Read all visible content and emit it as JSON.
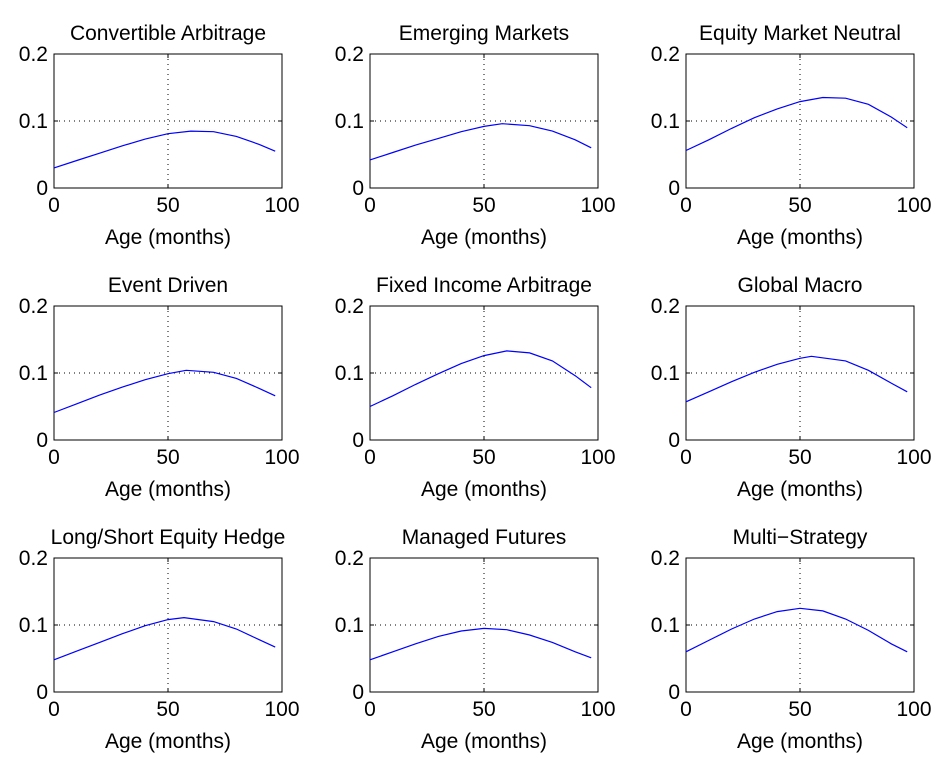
{
  "chart_data": [
    {
      "type": "line",
      "title": "Convertible Arbitrage",
      "xlabel": "Age (months)",
      "ylabel": "",
      "xlim": [
        0,
        100
      ],
      "ylim": [
        0,
        0.2
      ],
      "xticks": [
        0,
        50,
        100
      ],
      "yticks": [
        0,
        0.1,
        0.2
      ],
      "xtick_labels": [
        "0",
        "50",
        "100"
      ],
      "ytick_labels": [
        "0",
        "0.1",
        "0.2"
      ],
      "grid_x": [
        50
      ],
      "grid_y": [
        0.1
      ],
      "series": [
        {
          "x": [
            0,
            10,
            20,
            30,
            40,
            50,
            60,
            70,
            80,
            90,
            97
          ],
          "y": [
            0.03,
            0.041,
            0.052,
            0.063,
            0.073,
            0.081,
            0.085,
            0.084,
            0.077,
            0.065,
            0.055
          ]
        }
      ]
    },
    {
      "type": "line",
      "title": "Emerging Markets",
      "xlabel": "Age (months)",
      "ylabel": "",
      "xlim": [
        0,
        100
      ],
      "ylim": [
        0,
        0.2
      ],
      "xticks": [
        0,
        50,
        100
      ],
      "yticks": [
        0,
        0.1,
        0.2
      ],
      "xtick_labels": [
        "0",
        "50",
        "100"
      ],
      "ytick_labels": [
        "0",
        "0.1",
        "0.2"
      ],
      "grid_x": [
        50
      ],
      "grid_y": [
        0.1
      ],
      "series": [
        {
          "x": [
            0,
            10,
            20,
            30,
            40,
            50,
            58,
            70,
            80,
            90,
            97
          ],
          "y": [
            0.042,
            0.053,
            0.064,
            0.074,
            0.084,
            0.092,
            0.096,
            0.093,
            0.085,
            0.072,
            0.06
          ]
        }
      ]
    },
    {
      "type": "line",
      "title": "Equity Market Neutral",
      "xlabel": "Age (months)",
      "ylabel": "",
      "xlim": [
        0,
        100
      ],
      "ylim": [
        0,
        0.2
      ],
      "xticks": [
        0,
        50,
        100
      ],
      "yticks": [
        0,
        0.1,
        0.2
      ],
      "xtick_labels": [
        "0",
        "50",
        "100"
      ],
      "ytick_labels": [
        "0",
        "0.1",
        "0.2"
      ],
      "grid_x": [
        50
      ],
      "grid_y": [
        0.1
      ],
      "series": [
        {
          "x": [
            0,
            10,
            20,
            30,
            40,
            50,
            60,
            70,
            80,
            90,
            97
          ],
          "y": [
            0.056,
            0.072,
            0.089,
            0.105,
            0.118,
            0.129,
            0.135,
            0.134,
            0.125,
            0.106,
            0.09
          ]
        }
      ]
    },
    {
      "type": "line",
      "title": "Event Driven",
      "xlabel": "Age (months)",
      "ylabel": "",
      "xlim": [
        0,
        100
      ],
      "ylim": [
        0,
        0.2
      ],
      "xticks": [
        0,
        50,
        100
      ],
      "yticks": [
        0,
        0.1,
        0.2
      ],
      "xtick_labels": [
        "0",
        "50",
        "100"
      ],
      "ytick_labels": [
        "0",
        "0.1",
        "0.2"
      ],
      "grid_x": [
        50
      ],
      "grid_y": [
        0.1
      ],
      "series": [
        {
          "x": [
            0,
            10,
            20,
            30,
            40,
            50,
            58,
            70,
            80,
            90,
            97
          ],
          "y": [
            0.041,
            0.054,
            0.067,
            0.079,
            0.09,
            0.099,
            0.104,
            0.101,
            0.092,
            0.077,
            0.066
          ]
        }
      ]
    },
    {
      "type": "line",
      "title": "Fixed Income Arbitrage",
      "xlabel": "Age (months)",
      "ylabel": "",
      "xlim": [
        0,
        100
      ],
      "ylim": [
        0,
        0.2
      ],
      "xticks": [
        0,
        50,
        100
      ],
      "yticks": [
        0,
        0.1,
        0.2
      ],
      "xtick_labels": [
        "0",
        "50",
        "100"
      ],
      "ytick_labels": [
        "0",
        "0.1",
        "0.2"
      ],
      "grid_x": [
        50
      ],
      "grid_y": [
        0.1
      ],
      "series": [
        {
          "x": [
            0,
            10,
            20,
            30,
            40,
            50,
            60,
            70,
            80,
            90,
            97
          ],
          "y": [
            0.05,
            0.066,
            0.083,
            0.099,
            0.114,
            0.126,
            0.133,
            0.13,
            0.118,
            0.096,
            0.078
          ]
        }
      ]
    },
    {
      "type": "line",
      "title": "Global Macro",
      "xlabel": "Age (months)",
      "ylabel": "",
      "xlim": [
        0,
        100
      ],
      "ylim": [
        0,
        0.2
      ],
      "xticks": [
        0,
        50,
        100
      ],
      "yticks": [
        0,
        0.1,
        0.2
      ],
      "xtick_labels": [
        "0",
        "50",
        "100"
      ],
      "ytick_labels": [
        "0",
        "0.1",
        "0.2"
      ],
      "grid_x": [
        50
      ],
      "grid_y": [
        0.1
      ],
      "series": [
        {
          "x": [
            0,
            10,
            20,
            30,
            40,
            50,
            55,
            70,
            80,
            90,
            97
          ],
          "y": [
            0.057,
            0.072,
            0.087,
            0.101,
            0.113,
            0.122,
            0.125,
            0.118,
            0.104,
            0.085,
            0.072
          ]
        }
      ]
    },
    {
      "type": "line",
      "title": "Long/Short Equity Hedge",
      "xlabel": "Age (months)",
      "ylabel": "",
      "xlim": [
        0,
        100
      ],
      "ylim": [
        0,
        0.2
      ],
      "xticks": [
        0,
        50,
        100
      ],
      "yticks": [
        0,
        0.1,
        0.2
      ],
      "xtick_labels": [
        "0",
        "50",
        "100"
      ],
      "ytick_labels": [
        "0",
        "0.1",
        "0.2"
      ],
      "grid_x": [
        50
      ],
      "grid_y": [
        0.1
      ],
      "series": [
        {
          "x": [
            0,
            10,
            20,
            30,
            40,
            50,
            57,
            70,
            80,
            90,
            97
          ],
          "y": [
            0.048,
            0.061,
            0.074,
            0.087,
            0.099,
            0.108,
            0.111,
            0.105,
            0.094,
            0.078,
            0.067
          ]
        }
      ]
    },
    {
      "type": "line",
      "title": "Managed Futures",
      "xlabel": "Age (months)",
      "ylabel": "",
      "xlim": [
        0,
        100
      ],
      "ylim": [
        0,
        0.2
      ],
      "xticks": [
        0,
        50,
        100
      ],
      "yticks": [
        0,
        0.1,
        0.2
      ],
      "xtick_labels": [
        "0",
        "50",
        "100"
      ],
      "ytick_labels": [
        "0",
        "0.1",
        "0.2"
      ],
      "grid_x": [
        50
      ],
      "grid_y": [
        0.1
      ],
      "series": [
        {
          "x": [
            0,
            10,
            20,
            30,
            40,
            50,
            60,
            70,
            80,
            90,
            97
          ],
          "y": [
            0.048,
            0.06,
            0.072,
            0.083,
            0.091,
            0.095,
            0.093,
            0.085,
            0.074,
            0.06,
            0.051
          ]
        }
      ]
    },
    {
      "type": "line",
      "title": "Multi−Strategy",
      "xlabel": "Age (months)",
      "ylabel": "",
      "xlim": [
        0,
        100
      ],
      "ylim": [
        0,
        0.2
      ],
      "xticks": [
        0,
        50,
        100
      ],
      "yticks": [
        0,
        0.1,
        0.2
      ],
      "xtick_labels": [
        "0",
        "50",
        "100"
      ],
      "ytick_labels": [
        "0",
        "0.1",
        "0.2"
      ],
      "grid_x": [
        50
      ],
      "grid_y": [
        0.1
      ],
      "series": [
        {
          "x": [
            0,
            10,
            20,
            30,
            40,
            50,
            60,
            70,
            80,
            90,
            97
          ],
          "y": [
            0.06,
            0.077,
            0.094,
            0.109,
            0.12,
            0.125,
            0.121,
            0.109,
            0.092,
            0.072,
            0.06
          ]
        }
      ]
    }
  ],
  "colors": {
    "series": "#0000ff",
    "axis": "#000000",
    "background": "#ffffff"
  }
}
